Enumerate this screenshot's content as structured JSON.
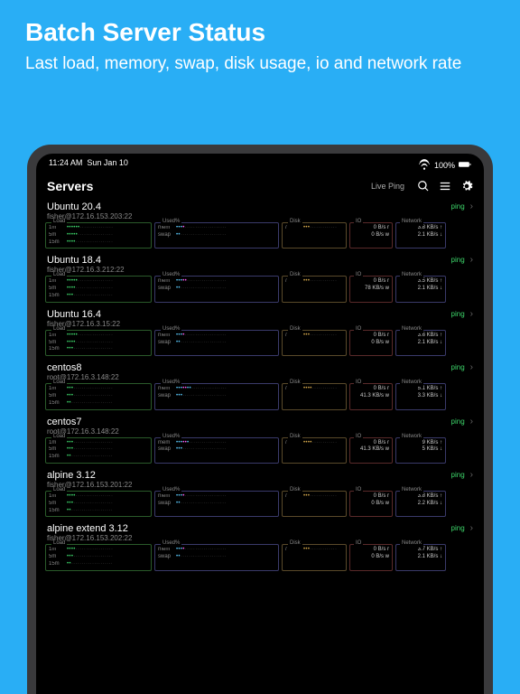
{
  "hero": {
    "title": "Batch Server Status",
    "subtitle": "Last load, memory, swap, disk usage, io and network rate"
  },
  "statusbar": {
    "time": "11:24 AM",
    "date": "Sun Jan 10",
    "battery": "100%"
  },
  "navbar": {
    "title": "Servers",
    "liveping": "Live Ping"
  },
  "labels": {
    "load": "Load",
    "used": "Used%",
    "disk": "Disk",
    "io": "IO",
    "net": "Network",
    "ping": "ping"
  },
  "colors": {
    "bg": "#29aef5",
    "tablet": "#3a3a3c",
    "screen": "#000000",
    "green": "#3dd66a",
    "cyan": "#5ac8fa",
    "magenta": "#ff5af0",
    "dim": "#444444",
    "yellow": "#d4a84a",
    "load_border": "#2a5a2a",
    "used_border": "#3a3a6a",
    "disk_border": "#5a4a2a",
    "io_border": "#5a2a2a",
    "net_border": "#3a3a6a"
  },
  "servers": [
    {
      "name": "Ubuntu 20.4",
      "addr": "fisher@172.16.153.203:22",
      "load": {
        "1m": 6,
        "5m": 5,
        "15m": 4
      },
      "mem": 4,
      "swap": 2,
      "disk": 3,
      "io": {
        "r": "0 B/s r",
        "w": "0 B/s w"
      },
      "net": {
        "up": "3.8 KB/s ↑",
        "down": "2.1 KB/s ↓"
      }
    },
    {
      "name": "Ubuntu 18.4",
      "addr": "fisher@172.16.3.212:22",
      "load": {
        "1m": 5,
        "5m": 4,
        "15m": 3
      },
      "mem": 5,
      "swap": 2,
      "disk": 3,
      "io": {
        "r": "0 B/s r",
        "w": "78 KB/s w"
      },
      "net": {
        "up": "3.5 KB/s ↑",
        "down": "2.1 KB/s ↓"
      }
    },
    {
      "name": "Ubuntu 16.4",
      "addr": "fisher@172.16.3.15:22",
      "load": {
        "1m": 5,
        "5m": 4,
        "15m": 3
      },
      "mem": 4,
      "swap": 2,
      "disk": 3,
      "io": {
        "r": "0 B/s r",
        "w": "0 B/s w"
      },
      "net": {
        "up": "3.6 KB/s ↑",
        "down": "2.1 KB/s ↓"
      }
    },
    {
      "name": "centos8",
      "addr": "root@172.16.3.148:22",
      "load": {
        "1m": 3,
        "5m": 3,
        "15m": 2
      },
      "mem": 7,
      "swap": 3,
      "disk": 4,
      "io": {
        "r": "0 B/s r",
        "w": "41.3 KB/s w"
      },
      "net": {
        "up": "5.1 KB/s ↑",
        "down": "3.3 KB/s ↓"
      }
    },
    {
      "name": "centos7",
      "addr": "root@172.16.3.148:22",
      "load": {
        "1m": 3,
        "5m": 3,
        "15m": 2
      },
      "mem": 6,
      "swap": 3,
      "disk": 4,
      "io": {
        "r": "0 B/s r",
        "w": "41.3 KB/s w"
      },
      "net": {
        "up": "9 KB/s ↑",
        "down": "5 KB/s ↓"
      }
    },
    {
      "name": "alpine 3.12",
      "addr": "fisher@172.16.153.201:22",
      "load": {
        "1m": 4,
        "5m": 3,
        "15m": 2
      },
      "mem": 4,
      "swap": 2,
      "disk": 3,
      "io": {
        "r": "0 B/s r",
        "w": "0 B/s w"
      },
      "net": {
        "up": "3.8 KB/s ↑",
        "down": "2.2 KB/s ↓"
      }
    },
    {
      "name": "alpine extend 3.12",
      "addr": "fisher@172.16.153.202:22",
      "load": {
        "1m": 4,
        "5m": 3,
        "15m": 2
      },
      "mem": 4,
      "swap": 2,
      "disk": 3,
      "io": {
        "r": "0 B/s r",
        "w": "0 B/s w"
      },
      "net": {
        "up": "3.7 KB/s ↑",
        "down": "2.1 KB/s ↓"
      }
    }
  ],
  "dot_capacity": {
    "load": 22,
    "mem": 24,
    "disk": 16
  }
}
